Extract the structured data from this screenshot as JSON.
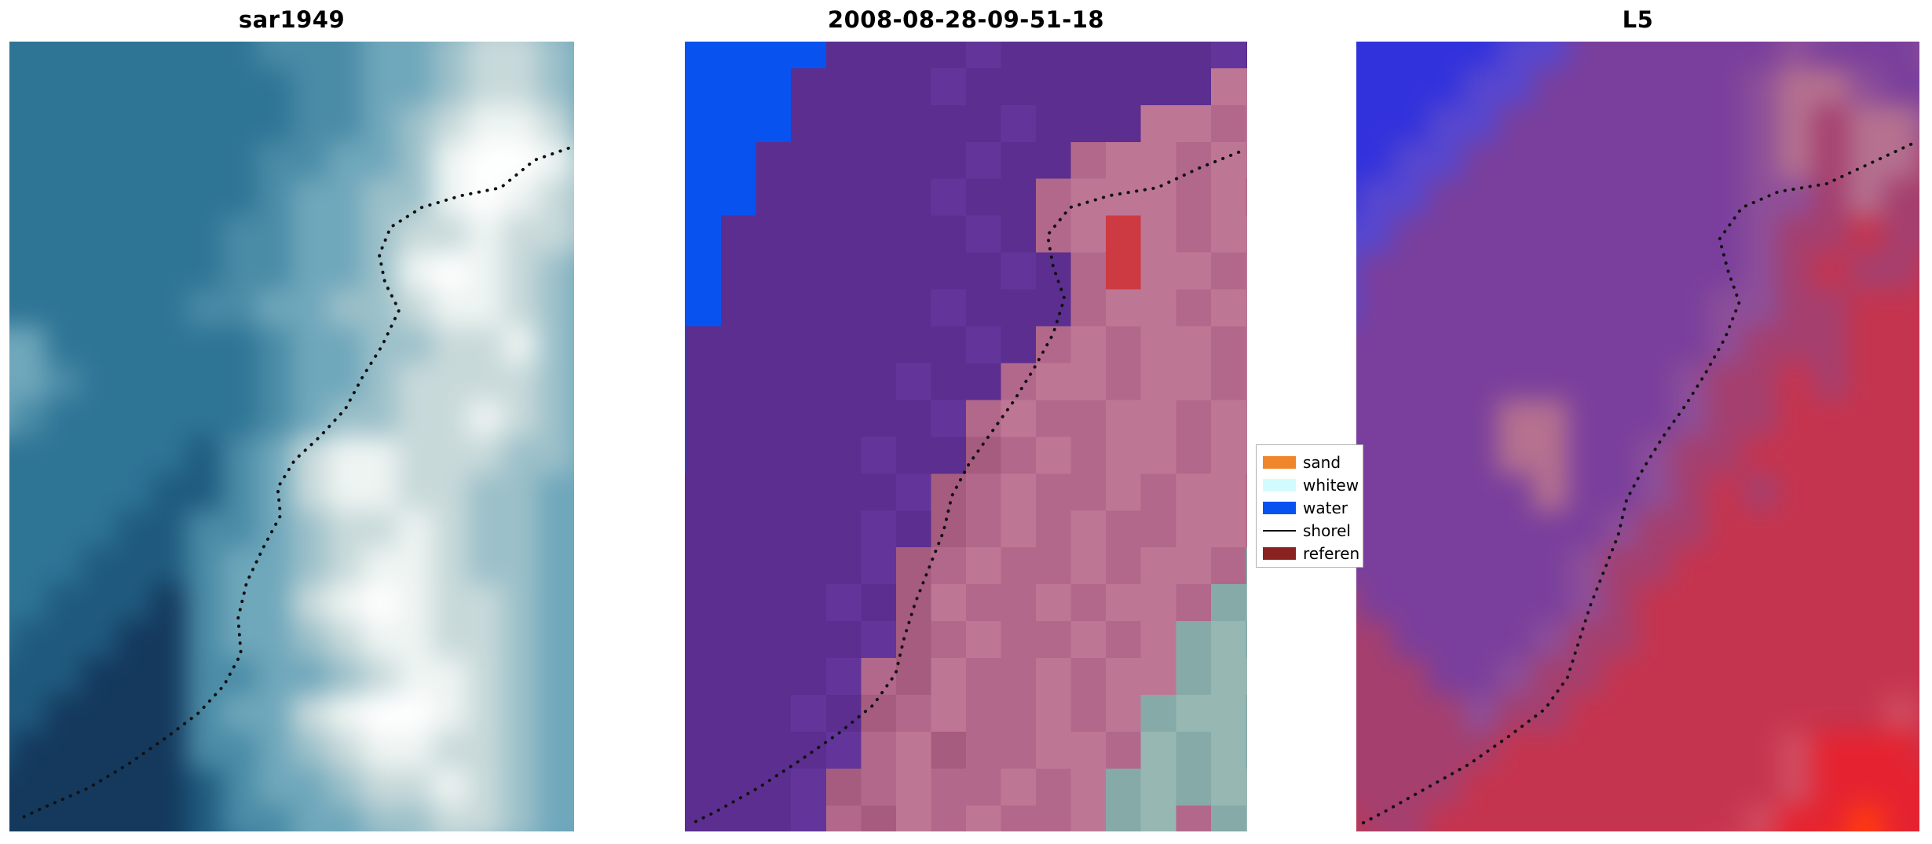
{
  "colors": {
    "background": "#ffffff",
    "shoreline_dots": "#111111",
    "legend_border": "#b0b0b0"
  },
  "legend": {
    "items": [
      {
        "label": "sand",
        "type": "patch",
        "color": "#f0862b"
      },
      {
        "label": "whitew",
        "type": "patch",
        "color": "#d2fbff"
      },
      {
        "label": "water",
        "type": "patch",
        "color": "#0853f0"
      },
      {
        "label": "shorel",
        "type": "line",
        "color": "#000000"
      },
      {
        "label": "referen",
        "type": "patch",
        "color": "#8b2222"
      }
    ]
  },
  "chart_data": [
    {
      "type": "heatmap",
      "title": "sar1949",
      "palette": {
        "a": "#14395d",
        "b": "#1f5a7e",
        "c": "#2e7495",
        "d": "#4a8ba6",
        "e": "#6fa7bb",
        "f": "#9cc0c9",
        "g": "#c8d9da",
        "h": "#eef4f2",
        "w": "#ffffff"
      },
      "rows": [
        "ccccccccdddeeeffee",
        "ccccccccdddeefggfe",
        "cccccccccddeefggfe",
        "cccccccccddefghhge",
        "ccccccccddeefhwwhf",
        "ccccccccdeeffhwhgf",
        "cccccccddeefgghggf",
        "cccccccddeefhwhgfe",
        "ccccccddeeffghhgfe",
        "eeccccccdeeffgghfe",
        "eedcccccdeefggggfe",
        "edccccccdeffgghgfe",
        "ccccccbdeghhgggffe",
        "cccccbbdeghhggffee",
        "ccccbbddefgghgffee",
        "cccbbbdeefghhgffee",
        "ccbbbadeeghwhggfee",
        "cbbbaadeefghhggfee",
        "bbbaaaddeefghhgfee",
        "bbaaaadeeghwwhgfee",
        "baaaaaddefghhggfee",
        "aaaaaabdeefgghgfee",
        "aaaaaabddeeffggfee",
        "aaaaaabbdeeeffeeed"
      ],
      "shoreline": [
        [
          0.99,
          0.135
        ],
        [
          0.93,
          0.15
        ],
        [
          0.87,
          0.185
        ],
        [
          0.8,
          0.195
        ],
        [
          0.73,
          0.21
        ],
        [
          0.675,
          0.235
        ],
        [
          0.655,
          0.27
        ],
        [
          0.665,
          0.305
        ],
        [
          0.69,
          0.34
        ],
        [
          0.66,
          0.385
        ],
        [
          0.625,
          0.425
        ],
        [
          0.595,
          0.465
        ],
        [
          0.55,
          0.5
        ],
        [
          0.505,
          0.53
        ],
        [
          0.475,
          0.565
        ],
        [
          0.48,
          0.6
        ],
        [
          0.45,
          0.64
        ],
        [
          0.42,
          0.685
        ],
        [
          0.405,
          0.73
        ],
        [
          0.41,
          0.775
        ],
        [
          0.38,
          0.815
        ],
        [
          0.335,
          0.85
        ],
        [
          0.28,
          0.88
        ],
        [
          0.21,
          0.915
        ],
        [
          0.14,
          0.945
        ],
        [
          0.06,
          0.97
        ],
        [
          0.015,
          0.985
        ]
      ]
    },
    {
      "type": "heatmap",
      "title": "2008-08-28-09-51-18",
      "palette": {
        "B": "#0853f0",
        "P": "#5b2e90",
        "Q": "#63359a",
        "m": "#b2688b",
        "n": "#bd7795",
        "o": "#a65c7e",
        "r": "#cd3a41",
        "t": "#85aaa8",
        "u": "#97b7b3"
      },
      "rows": [
        "BBBBBPPQPPPPPQPPPP",
        "BBBBBPPPPQPPPPPPQP",
        "BBBBPPPPQPPPPPPPnn",
        "BBBBPPPPPPQPPPnnmn",
        "BBBPPPPPPQPPmnnmnn",
        "BBBPPPPPQPPmnnnmnm",
        "BBPPPPPPPQPmnrnmnn",
        "BBPPPPPPPPQPmrnnmn",
        "BBPPPPPPQPPPmnnmnn",
        "BPPPPPPPPQPmnmnnmn",
        "BPPPPPPQPPmnnmnnmn",
        "BPPPPPPPQmnmmnnmnn",
        "BPPPPPQPPomnmnnmnn",
        "PPPPPPPQomnmmnmnnm",
        "PPPPPPQPomnmnmmnnm",
        "PPPPPPQomnmmnmnnmt",
        "PPPPPQPonmmnmnnmtu",
        "PPPPPPQomnmmnmntut",
        "PPPPPQmonmmnmnntuu",
        "PPPPQPomnmmnmntuut",
        "PPPPPQmnommnnmutut",
        "PPPPQomnmmnmntutuu",
        "PPPPQmonmnmmntumtu",
        "PPPPQomnmmnmnttuut"
      ],
      "shoreline": [
        [
          0.985,
          0.14
        ],
        [
          0.915,
          0.16
        ],
        [
          0.84,
          0.185
        ],
        [
          0.755,
          0.195
        ],
        [
          0.685,
          0.21
        ],
        [
          0.645,
          0.245
        ],
        [
          0.655,
          0.285
        ],
        [
          0.675,
          0.325
        ],
        [
          0.655,
          0.37
        ],
        [
          0.62,
          0.415
        ],
        [
          0.585,
          0.455
        ],
        [
          0.545,
          0.495
        ],
        [
          0.505,
          0.535
        ],
        [
          0.475,
          0.575
        ],
        [
          0.46,
          0.62
        ],
        [
          0.435,
          0.665
        ],
        [
          0.41,
          0.71
        ],
        [
          0.39,
          0.755
        ],
        [
          0.375,
          0.8
        ],
        [
          0.335,
          0.84
        ],
        [
          0.275,
          0.875
        ],
        [
          0.205,
          0.91
        ],
        [
          0.13,
          0.945
        ],
        [
          0.055,
          0.975
        ],
        [
          0.012,
          0.99
        ]
      ]
    },
    {
      "type": "heatmap",
      "title": "L5",
      "palette": {
        "B": "#3232dc",
        "b": "#5747cf",
        "P": "#7a3f9c",
        "p": "#8d4f99",
        "M": "#b5718f",
        "V": "#a53f6e",
        "R": "#c5344e",
        "s": "#d14b60",
        "X": "#e52330",
        "O": "#ff3a12"
      },
      "rows": [
        "BBBBBBbPPPPPPppPPP",
        "BBBBBbbPPPPPPpPPPp",
        "BBBBbbPPPPPPpMMpPP",
        "BBBbbPPPPPPPpMVMMp",
        "BBbbPPPPPPPPpMVMMV",
        "BbbPPPPPPPPPppVMVV",
        "bbPPPPPPPPPPpVVRVV",
        "bPPPPPPPPPPPpVRVVR",
        "bPPPPPPPPPPppVVRRR",
        "PPPPPPPPPPPpVVVRRR",
        "PPPPPPPPPPpVVRVRRR",
        "PPPPPMMPPPpVVRRRRR",
        "PPPPPMMPPpVVRRRRRR",
        "PPPPPPMPPpVRVRRRRR",
        "PPPPPPPPpVVRRRRRRR",
        "PPPPPPPpVVRRRRRRRR",
        "VPPPPPPpVRRRRRRRRR",
        "VVPPPPpVVRRRRRRRRR",
        "VVVPPpVVRRRRRRRRRR",
        "VVVVpVVRRRRRRRRRsR",
        "VVVVVRRRRRRRRsXXXR",
        "VVVVRRRRRRRRRsXXXX",
        "RVVRRRRRRRRRsXXOXX",
        "RRVRRRRRRRRsXXOOXX"
      ],
      "shoreline": [
        [
          0.985,
          0.13
        ],
        [
          0.91,
          0.155
        ],
        [
          0.835,
          0.18
        ],
        [
          0.75,
          0.19
        ],
        [
          0.685,
          0.21
        ],
        [
          0.645,
          0.25
        ],
        [
          0.66,
          0.29
        ],
        [
          0.68,
          0.33
        ],
        [
          0.655,
          0.375
        ],
        [
          0.62,
          0.42
        ],
        [
          0.585,
          0.46
        ],
        [
          0.545,
          0.5
        ],
        [
          0.51,
          0.54
        ],
        [
          0.48,
          0.58
        ],
        [
          0.465,
          0.625
        ],
        [
          0.44,
          0.67
        ],
        [
          0.415,
          0.715
        ],
        [
          0.395,
          0.76
        ],
        [
          0.375,
          0.805
        ],
        [
          0.335,
          0.845
        ],
        [
          0.27,
          0.88
        ],
        [
          0.2,
          0.915
        ],
        [
          0.125,
          0.945
        ],
        [
          0.05,
          0.975
        ],
        [
          0.01,
          0.99
        ]
      ]
    }
  ]
}
